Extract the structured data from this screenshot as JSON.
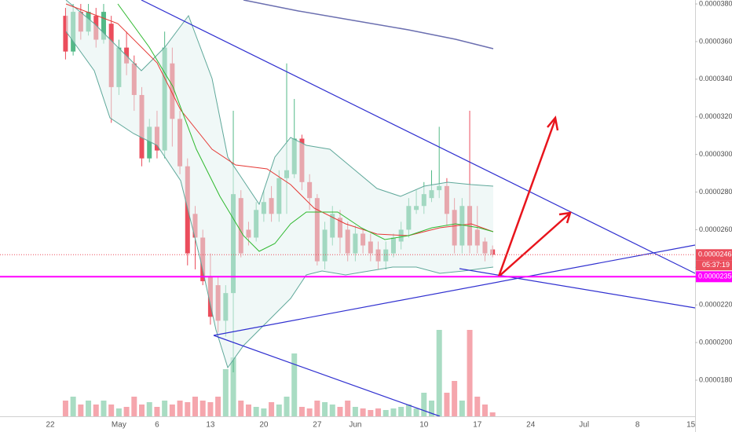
{
  "chart_data": {
    "type": "candlestick",
    "categories": [
      "22",
      null,
      null,
      null,
      null,
      null,
      null,
      null,
      null,
      "May",
      null,
      null,
      null,
      null,
      "6",
      null,
      null,
      null,
      null,
      null,
      null,
      "13",
      null,
      null,
      null,
      null,
      null,
      null,
      "20",
      null,
      null,
      null,
      null,
      null,
      null,
      "27",
      null,
      null,
      null,
      null,
      "Jun",
      null,
      null,
      null,
      null,
      null,
      null,
      null,
      null,
      "10",
      null,
      null,
      null,
      null,
      null,
      null,
      "17",
      null,
      null,
      null,
      null,
      null,
      null,
      "24",
      null,
      null,
      null,
      null,
      null,
      null,
      "Jul",
      null,
      null,
      null,
      null,
      null,
      null,
      "8",
      null,
      null,
      null,
      null,
      null,
      null,
      "15",
      null
    ],
    "open": [
      null,
      null,
      3.737e-05,
      3.547e-05,
      3.758e-05,
      3.653e-05,
      3.737e-05,
      3.61e-05,
      3.695e-05,
      3.358e-05,
      3.568e-05,
      3.484e-05,
      3.316e-05,
      2.979e-05,
      3.147e-05,
      3.021e-05,
      3.484e-05,
      3.189e-05,
      2.937e-05,
      2.684e-05,
      2.558e-05,
      2.347e-05,
      2.305e-05,
      2.116e-05,
      2.263e-05,
      2.768e-05,
      2.6e-05,
      2.558e-05,
      2.684e-05,
      2.768e-05,
      2.684e-05,
      2.874e-05,
      2.895e-05,
      3.084e-05,
      2.853e-05,
      2.768e-05,
      2.432e-05,
      2.558e-05,
      2.663e-05,
      2.6e-05,
      2.474e-05,
      2.579e-05,
      2.537e-05,
      2.495e-05,
      2.432e-05,
      2.474e-05,
      2.537e-05,
      2.6e-05,
      2.705e-05,
      2.726e-05,
      2.768e-05,
      2.81e-05,
      2.832e-05,
      2.705e-05,
      2.516e-05,
      2.726e-05,
      2.6e-05,
      2.537e-05,
      2.495e-05,
      null,
      null,
      null,
      null,
      null,
      null,
      null,
      null,
      null,
      null,
      null,
      null,
      null,
      null,
      null,
      null,
      null,
      null,
      null,
      null,
      null,
      null,
      null,
      null,
      null,
      null,
      null
    ],
    "high": [
      null,
      null,
      3.779e-05,
      3.8e-05,
      3.8e-05,
      3.8e-05,
      3.779e-05,
      3.8e-05,
      3.737e-05,
      3.61e-05,
      3.653e-05,
      3.526e-05,
      3.358e-05,
      3.189e-05,
      3.232e-05,
      3.653e-05,
      3.568e-05,
      3.232e-05,
      2.979e-05,
      2.726e-05,
      2.6e-05,
      2.474e-05,
      2.347e-05,
      2.305e-05,
      3.232e-05,
      2.81e-05,
      2.642e-05,
      2.747e-05,
      2.81e-05,
      2.832e-05,
      2.916e-05,
      3.484e-05,
      3.295e-05,
      3.105e-05,
      2.895e-05,
      2.789e-05,
      2.642e-05,
      2.726e-05,
      2.705e-05,
      2.642e-05,
      2.621e-05,
      2.6e-05,
      2.579e-05,
      2.537e-05,
      2.537e-05,
      2.579e-05,
      2.642e-05,
      2.768e-05,
      2.81e-05,
      2.853e-05,
      2.916e-05,
      3.147e-05,
      2.874e-05,
      2.768e-05,
      2.768e-05,
      3.232e-05,
      2.726e-05,
      2.558e-05,
      2.516e-05,
      null,
      null,
      null,
      null,
      null,
      null,
      null,
      null,
      null,
      null,
      null,
      null,
      null,
      null,
      null,
      null,
      null,
      null,
      null,
      null,
      null,
      null,
      null,
      null,
      null,
      null,
      null
    ],
    "low": [
      null,
      null,
      3.505e-05,
      3.526e-05,
      3.61e-05,
      3.632e-05,
      3.568e-05,
      3.589e-05,
      3.168e-05,
      3.316e-05,
      3.421e-05,
      3.232e-05,
      2.937e-05,
      2.958e-05,
      2.979e-05,
      2.979e-05,
      3.042e-05,
      2.895e-05,
      2.41e-05,
      2.389e-05,
      2.305e-05,
      2.095e-05,
      2.053e-05,
      2.032e-05,
      1.842e-05,
      2.453e-05,
      2.516e-05,
      2.537e-05,
      2.642e-05,
      2.642e-05,
      2.642e-05,
      2.684e-05,
      2.874e-05,
      2.81e-05,
      2.705e-05,
      2.41e-05,
      2.389e-05,
      2.516e-05,
      2.474e-05,
      2.432e-05,
      2.432e-05,
      2.474e-05,
      2.432e-05,
      2.389e-05,
      2.389e-05,
      2.453e-05,
      2.495e-05,
      2.558e-05,
      2.684e-05,
      2.684e-05,
      2.747e-05,
      2.768e-05,
      2.621e-05,
      2.474e-05,
      2.474e-05,
      2.474e-05,
      2.474e-05,
      2.432e-05,
      2.453e-05,
      null,
      null,
      null,
      null,
      null,
      null,
      null,
      null,
      null,
      null,
      null,
      null,
      null,
      null,
      null,
      null,
      null,
      null,
      null,
      null,
      null,
      null,
      null,
      null,
      null,
      null,
      null
    ],
    "close": [
      null,
      null,
      3.547e-05,
      3.758e-05,
      3.653e-05,
      3.758e-05,
      3.61e-05,
      3.758e-05,
      3.358e-05,
      3.568e-05,
      3.484e-05,
      3.316e-05,
      2.979e-05,
      3.147e-05,
      3.021e-05,
      3.568e-05,
      3.189e-05,
      2.937e-05,
      2.474e-05,
      2.558e-05,
      2.326e-05,
      2.137e-05,
      2.116e-05,
      2.263e-05,
      2.789e-05,
      2.474e-05,
      2.558e-05,
      2.705e-05,
      2.747e-05,
      2.684e-05,
      2.874e-05,
      2.916e-05,
      3.084e-05,
      2.853e-05,
      2.768e-05,
      2.432e-05,
      2.6e-05,
      2.684e-05,
      2.558e-05,
      2.474e-05,
      2.579e-05,
      2.516e-05,
      2.474e-05,
      2.432e-05,
      2.495e-05,
      2.558e-05,
      2.6e-05,
      2.726e-05,
      2.726e-05,
      2.789e-05,
      2.81e-05,
      2.832e-05,
      2.684e-05,
      2.516e-05,
      2.726e-05,
      2.516e-05,
      2.516e-05,
      2.474e-05,
      2.467e-05,
      null,
      null,
      null,
      null,
      null,
      null,
      null,
      null,
      null,
      null,
      null,
      null,
      null,
      null,
      null,
      null,
      null,
      null,
      null,
      null,
      null,
      null,
      null,
      null,
      null,
      null,
      null
    ],
    "volume": [
      null,
      null,
      20,
      25,
      15,
      20,
      15,
      20,
      15,
      10,
      12,
      25,
      15,
      18,
      12,
      20,
      15,
      20,
      18,
      25,
      20,
      18,
      25,
      60,
      75,
      20,
      15,
      12,
      10,
      18,
      15,
      25,
      80,
      12,
      10,
      20,
      18,
      15,
      12,
      20,
      12,
      10,
      8,
      10,
      8,
      10,
      12,
      15,
      10,
      30,
      20,
      110,
      30,
      45,
      20,
      110,
      25,
      15,
      5,
      null,
      null,
      null,
      null,
      null,
      null,
      null,
      null,
      null,
      null,
      null,
      null,
      null,
      null,
      null,
      null,
      null,
      null,
      null,
      null,
      null,
      null,
      null,
      null,
      null,
      null,
      null
    ],
    "up_color": "#53b987",
    "down_color": "#eb4d5c",
    "ylim": [
      1.608e-05,
      3.821e-05
    ],
    "yticks": [
      {
        "value": 1.8e-05,
        "label": "0.00001800"
      },
      {
        "value": 2e-05,
        "label": "0.00002000"
      },
      {
        "value": 2.2e-05,
        "label": "0.00002200"
      },
      {
        "value": 2.4e-05,
        "label": "0.00002400"
      },
      {
        "value": 2.6e-05,
        "label": "0.00002600"
      },
      {
        "value": 2.8e-05,
        "label": "0.00002800"
      },
      {
        "value": 3e-05,
        "label": "0.00003000"
      },
      {
        "value": 3.2e-05,
        "label": "0.00003200"
      },
      {
        "value": 3.4e-05,
        "label": "0.00003400"
      },
      {
        "value": 3.6e-05,
        "label": "0.00003600"
      },
      {
        "value": 3.8e-05,
        "label": "0.00003800"
      }
    ],
    "grid": false,
    "price_lines": [
      {
        "value": 2.467e-05,
        "label": "0.00002467",
        "color": "#eb4d5c",
        "style": "dotted"
      },
      {
        "value": 2.35e-05,
        "label": "0.00002350",
        "color": "#ff00ff",
        "style": "solid"
      }
    ],
    "countdown": "05:37:19"
  }
}
